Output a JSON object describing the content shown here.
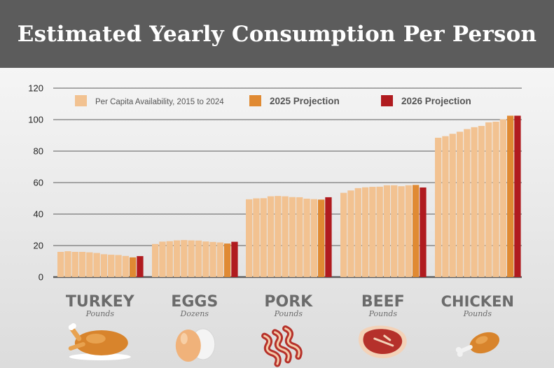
{
  "title": "Estimated Yearly Consumption Per Person",
  "chart_data": {
    "type": "bar",
    "ylim": [
      0,
      120
    ],
    "yticks": [
      0,
      20,
      40,
      60,
      80,
      100,
      120
    ],
    "grid": true,
    "legend_position": "top",
    "colors": {
      "history": "#f2c291",
      "p2025": "#e08a33",
      "p2026": "#b01b1f",
      "grid": "#5a5a5a"
    },
    "legend": [
      {
        "key": "history",
        "label": "Per Capita Availability, 2015 to 2024"
      },
      {
        "key": "p2025",
        "label": "2025 Projection"
      },
      {
        "key": "p2026",
        "label": "2026 Projection"
      }
    ],
    "categories": [
      {
        "name": "TURKEY",
        "unit": "Pounds",
        "icon": "turkey-icon",
        "history": [
          16,
          16.4,
          16,
          16,
          15.7,
          15.3,
          14.5,
          14.2,
          14,
          13.4
        ],
        "p2025": 12.5,
        "p2026": 13.3
      },
      {
        "name": "EGGS",
        "unit": "Dozens",
        "icon": "eggs-icon",
        "history": [
          21,
          22.5,
          22.8,
          23.3,
          23.5,
          23.3,
          23.2,
          22.6,
          22.3,
          22
        ],
        "p2025": 21.3,
        "p2026": 22.4
      },
      {
        "name": "PORK",
        "unit": "Pounds",
        "icon": "bacon-icon",
        "history": [
          49.4,
          50,
          50.1,
          51.3,
          51.5,
          51.3,
          50.8,
          50.7,
          49.8,
          49.5
        ],
        "p2025": 49.2,
        "p2026": 50.7
      },
      {
        "name": "BEEF",
        "unit": "Pounds",
        "icon": "steak-icon",
        "history": [
          53.5,
          55,
          56.5,
          57,
          57.3,
          57.4,
          58.3,
          58.3,
          57.7,
          58.3
        ],
        "p2025": 58.5,
        "p2026": 56.9
      },
      {
        "name": "CHICKEN",
        "unit": "Pounds",
        "icon": "drumstick-icon",
        "history": [
          88.5,
          89.5,
          91,
          92.3,
          94,
          95.2,
          96,
          98.3,
          98.7,
          100.2
        ],
        "p2025": 102.5,
        "p2026": 102.5
      }
    ]
  }
}
